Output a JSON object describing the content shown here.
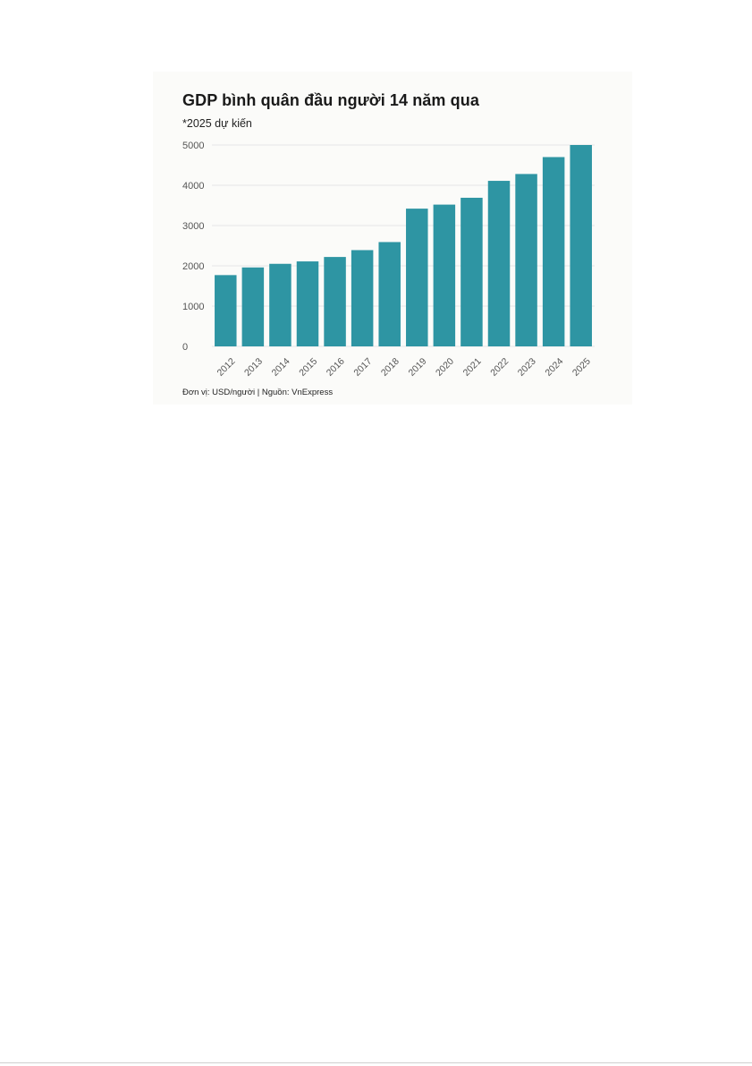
{
  "chart_data": {
    "type": "bar",
    "title": "GDP bình quân đầu người 14 năm qua",
    "subtitle": "*2025 dự kiến",
    "categories": [
      "2012",
      "2013",
      "2014",
      "2015",
      "2016",
      "2017",
      "2018",
      "2019",
      "2020",
      "2021",
      "2022",
      "2023",
      "2024",
      "2025"
    ],
    "values": [
      1770,
      1960,
      2050,
      2110,
      2220,
      2390,
      2590,
      3420,
      3520,
      3690,
      4110,
      4280,
      4700,
      5000
    ],
    "xlabel": "",
    "ylabel": "",
    "ylim": [
      0,
      5000
    ],
    "yticks": [
      0,
      1000,
      2000,
      3000,
      4000,
      5000
    ],
    "grid": true,
    "bar_color": "#2e95a3",
    "footer": "Đơn vị: USD/người | Nguồn: VnExpress"
  }
}
